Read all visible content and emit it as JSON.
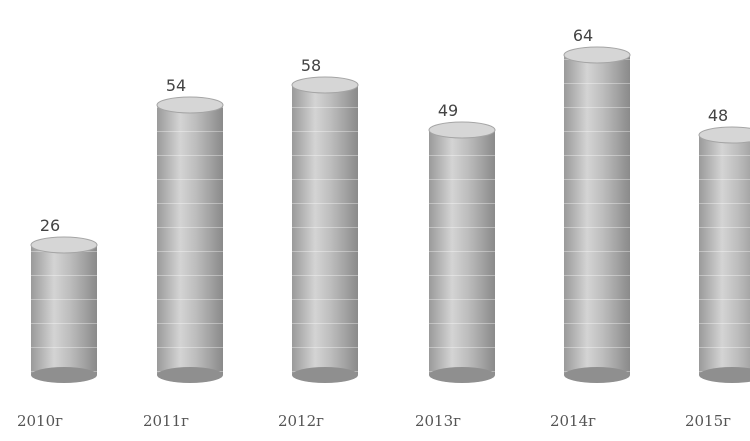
{
  "chart_data": {
    "type": "bar",
    "style": "3d-cylinder",
    "categories": [
      "2010г",
      "2011г",
      "2012г",
      "2013г",
      "2014г",
      "2015г"
    ],
    "values": [
      26,
      54,
      58,
      49,
      64,
      48
    ],
    "ylim": [
      0,
      70
    ],
    "grid": false,
    "legend": "none",
    "colors": {
      "bar": "#b9b9b9",
      "bar_light": "#d6d6d6",
      "bar_dark": "#8f8f8f",
      "label": "#444444"
    }
  }
}
